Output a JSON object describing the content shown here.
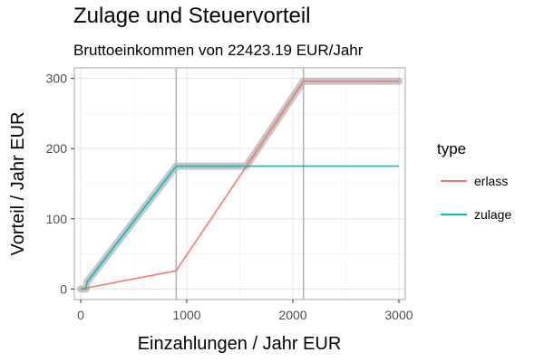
{
  "chart_data": {
    "type": "line",
    "title": "Zulage und Steuervorteil",
    "subtitle": "Bruttoeinkommen von 22423.19 EUR/Jahr",
    "xlabel": "Einzahlungen / Jahr EUR",
    "ylabel": "Vorteil / Jahr EUR",
    "xlim": [
      -60,
      3060
    ],
    "ylim": [
      -15,
      315
    ],
    "x_ticks": [
      0,
      1000,
      2000,
      3000
    ],
    "x_tick_labels": [
      "0",
      "1000",
      "2000",
      "3000"
    ],
    "y_ticks": [
      0,
      100,
      200,
      300
    ],
    "y_tick_labels": [
      "0",
      "100",
      "200",
      "300"
    ],
    "grid": true,
    "legend": {
      "title": "type",
      "position": "right"
    },
    "vlines": [
      900,
      2100
    ],
    "series": [
      {
        "name": "erlass",
        "color": "#F8766D",
        "x": [
          0,
          900,
          2100,
          3000
        ],
        "y": [
          0,
          26,
          296,
          296
        ]
      },
      {
        "name": "zulage",
        "color": "#00BFC4",
        "x": [
          0,
          50,
          60,
          900,
          3000
        ],
        "y": [
          0,
          0,
          10,
          175,
          175
        ]
      }
    ],
    "total": {
      "color": "#b3b3b3",
      "x": [
        0,
        50,
        60,
        900,
        1560,
        2100,
        3000
      ],
      "y": [
        0,
        0,
        10,
        175,
        175,
        296,
        296
      ]
    }
  }
}
